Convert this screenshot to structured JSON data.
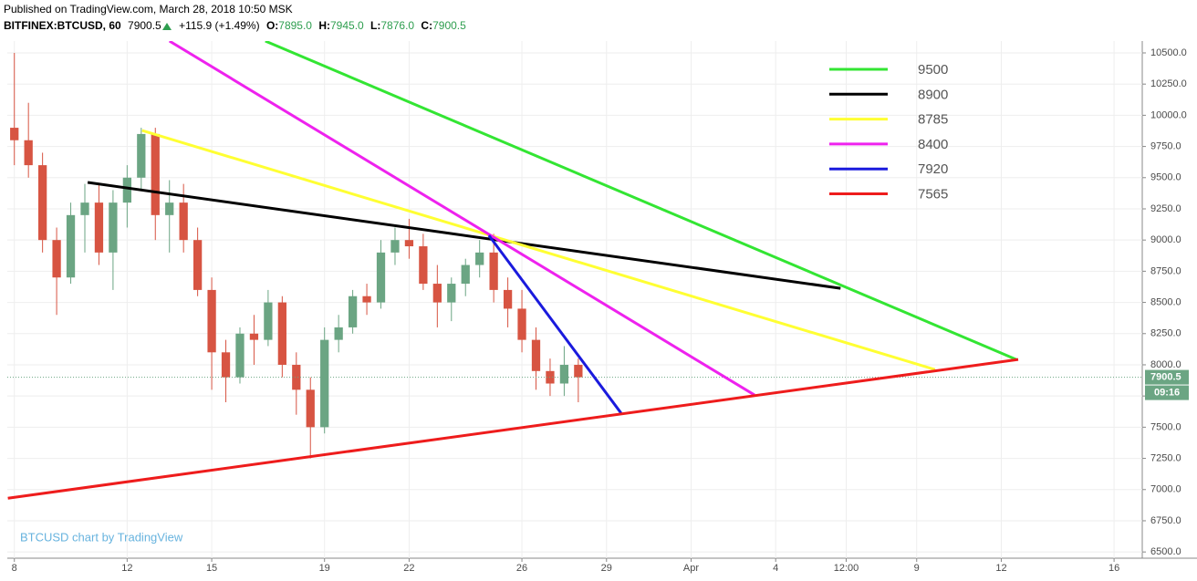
{
  "header": {
    "published": "Published on TradingView.com, March 28, 2018 10:50 MSK",
    "symbol": "BITFINEX:BTCUSD, 60",
    "price": "7900.5",
    "change": "+115.9 (+1.49%)",
    "ohlc": [
      [
        "O:",
        "7895.0"
      ],
      [
        "H:",
        "7945.0"
      ],
      [
        "L:",
        "7876.0"
      ],
      [
        "C:",
        "7900.5"
      ]
    ]
  },
  "chart_data": {
    "type": "candlestick",
    "x": [
      8,
      8.5,
      9,
      9.5,
      10,
      10.5,
      11,
      11.5,
      12,
      12.5,
      13,
      13.5,
      14,
      14.5,
      15,
      15.5,
      16,
      16.5,
      17,
      17.5,
      18,
      18.5,
      19,
      19.5,
      20,
      20.5,
      21,
      21.5,
      22,
      22.5,
      23,
      23.5,
      24,
      24.5,
      25,
      25.5,
      26,
      26.5,
      27,
      27.5,
      28
    ],
    "open": [
      9900,
      9800,
      9600,
      9000,
      8700,
      9200,
      9300,
      8900,
      9300,
      9500,
      9850,
      9200,
      9300,
      9000,
      8600,
      8100,
      7900,
      8250,
      8200,
      8500,
      8000,
      7800,
      7500,
      8200,
      8300,
      8550,
      8500,
      8900,
      9000,
      8950,
      8650,
      8500,
      8650,
      8800,
      8900,
      8600,
      8450,
      8200,
      7950,
      7850,
      8000
    ],
    "high": [
      10500,
      10100,
      9700,
      9100,
      9300,
      9450,
      9450,
      9400,
      9600,
      9900,
      9900,
      9480,
      9450,
      9100,
      8700,
      8200,
      8300,
      8400,
      8600,
      8550,
      8100,
      7900,
      8300,
      8400,
      8600,
      8650,
      9000,
      9100,
      9170,
      9050,
      8800,
      8700,
      8850,
      9000,
      9050,
      8700,
      8600,
      8300,
      8050,
      8150,
      8050
    ],
    "low": [
      9600,
      9500,
      8900,
      8400,
      8650,
      8900,
      8800,
      8600,
      9100,
      9400,
      9000,
      8900,
      8900,
      8550,
      7800,
      7700,
      7850,
      8000,
      8150,
      7900,
      7600,
      7250,
      7450,
      8100,
      8250,
      8400,
      8450,
      8800,
      8850,
      8600,
      8300,
      8350,
      8550,
      8700,
      8500,
      8300,
      8100,
      7800,
      7750,
      7750,
      7700
    ],
    "close": [
      9800,
      9600,
      9000,
      8700,
      9200,
      9300,
      8900,
      9300,
      9500,
      9850,
      9200,
      9300,
      9000,
      8600,
      8100,
      7900,
      8250,
      8200,
      8500,
      8000,
      7800,
      7500,
      8200,
      8300,
      8550,
      8500,
      8900,
      9000,
      8950,
      8650,
      8500,
      8650,
      8800,
      8900,
      8600,
      8450,
      8200,
      7950,
      7850,
      8000,
      7900.5
    ],
    "up_color": "#6ba583",
    "down_color": "#d75442",
    "xlim": [
      7.75,
      48
    ],
    "ylim": [
      6450,
      10595
    ],
    "xticks": [
      8,
      12,
      15,
      19,
      22,
      26,
      29,
      {
        "value": 32,
        "label": "Apr"
      },
      {
        "value": 35,
        "label": "4"
      },
      {
        "value": 37.5,
        "label": "12:00"
      },
      {
        "value": 40,
        "label": "9"
      },
      {
        "value": 43,
        "label": "12"
      },
      {
        "value": 47,
        "label": "16"
      }
    ],
    "yticks": [
      {
        "value": 6500,
        "label": "6500.0"
      },
      {
        "value": 6750,
        "label": "6750.0"
      },
      {
        "value": 7000,
        "label": "7000.0"
      },
      {
        "value": 7250,
        "label": "7250.0"
      },
      {
        "value": 7500,
        "label": "7500.0"
      },
      {
        "value": 7750,
        "label": "7750.0"
      },
      {
        "value": 8000,
        "label": "8000.0"
      },
      {
        "value": 8250,
        "label": "8250.0"
      },
      {
        "value": 8500,
        "label": "8500.0"
      },
      {
        "value": 8750,
        "label": "8750.0"
      },
      {
        "value": 9000,
        "label": "9000.0"
      },
      {
        "value": 9250,
        "label": "9250.0"
      },
      {
        "value": 9500,
        "label": "9500.0"
      },
      {
        "value": 9750,
        "label": "9750.0"
      },
      {
        "value": 10000,
        "label": "10000.0"
      },
      {
        "value": 10250,
        "label": "10250.0"
      },
      {
        "value": 10500,
        "label": "10500.0"
      }
    ],
    "grid": true,
    "lines": [
      {
        "name": "9500",
        "color": "#33e533",
        "x": [
          16.9,
          43.53
        ],
        "y": [
          10595,
          8043
        ]
      },
      {
        "name": "8900",
        "color": "#000000",
        "x": [
          10.6,
          37.3
        ],
        "y": [
          9462,
          8613
        ]
      },
      {
        "name": "8785",
        "color": "#ffff33",
        "x": [
          12.53,
          40.65
        ],
        "y": [
          9878,
          7962
        ]
      },
      {
        "name": "8400",
        "color": "#ee22ee",
        "x": [
          13.5,
          34.25
        ],
        "y": [
          10595,
          7758
        ]
      },
      {
        "name": "7920",
        "color": "#1a1add",
        "x": [
          24.83,
          29.52
        ],
        "y": [
          9037,
          7612
        ]
      },
      {
        "name": "7565",
        "color": "#ee1c1c",
        "x": [
          7.77,
          43.6
        ],
        "y": [
          6931,
          8043
        ]
      }
    ],
    "last_price": 7900.5,
    "timer": "09:16",
    "watermark": "BTCUSD chart by TradingView"
  }
}
